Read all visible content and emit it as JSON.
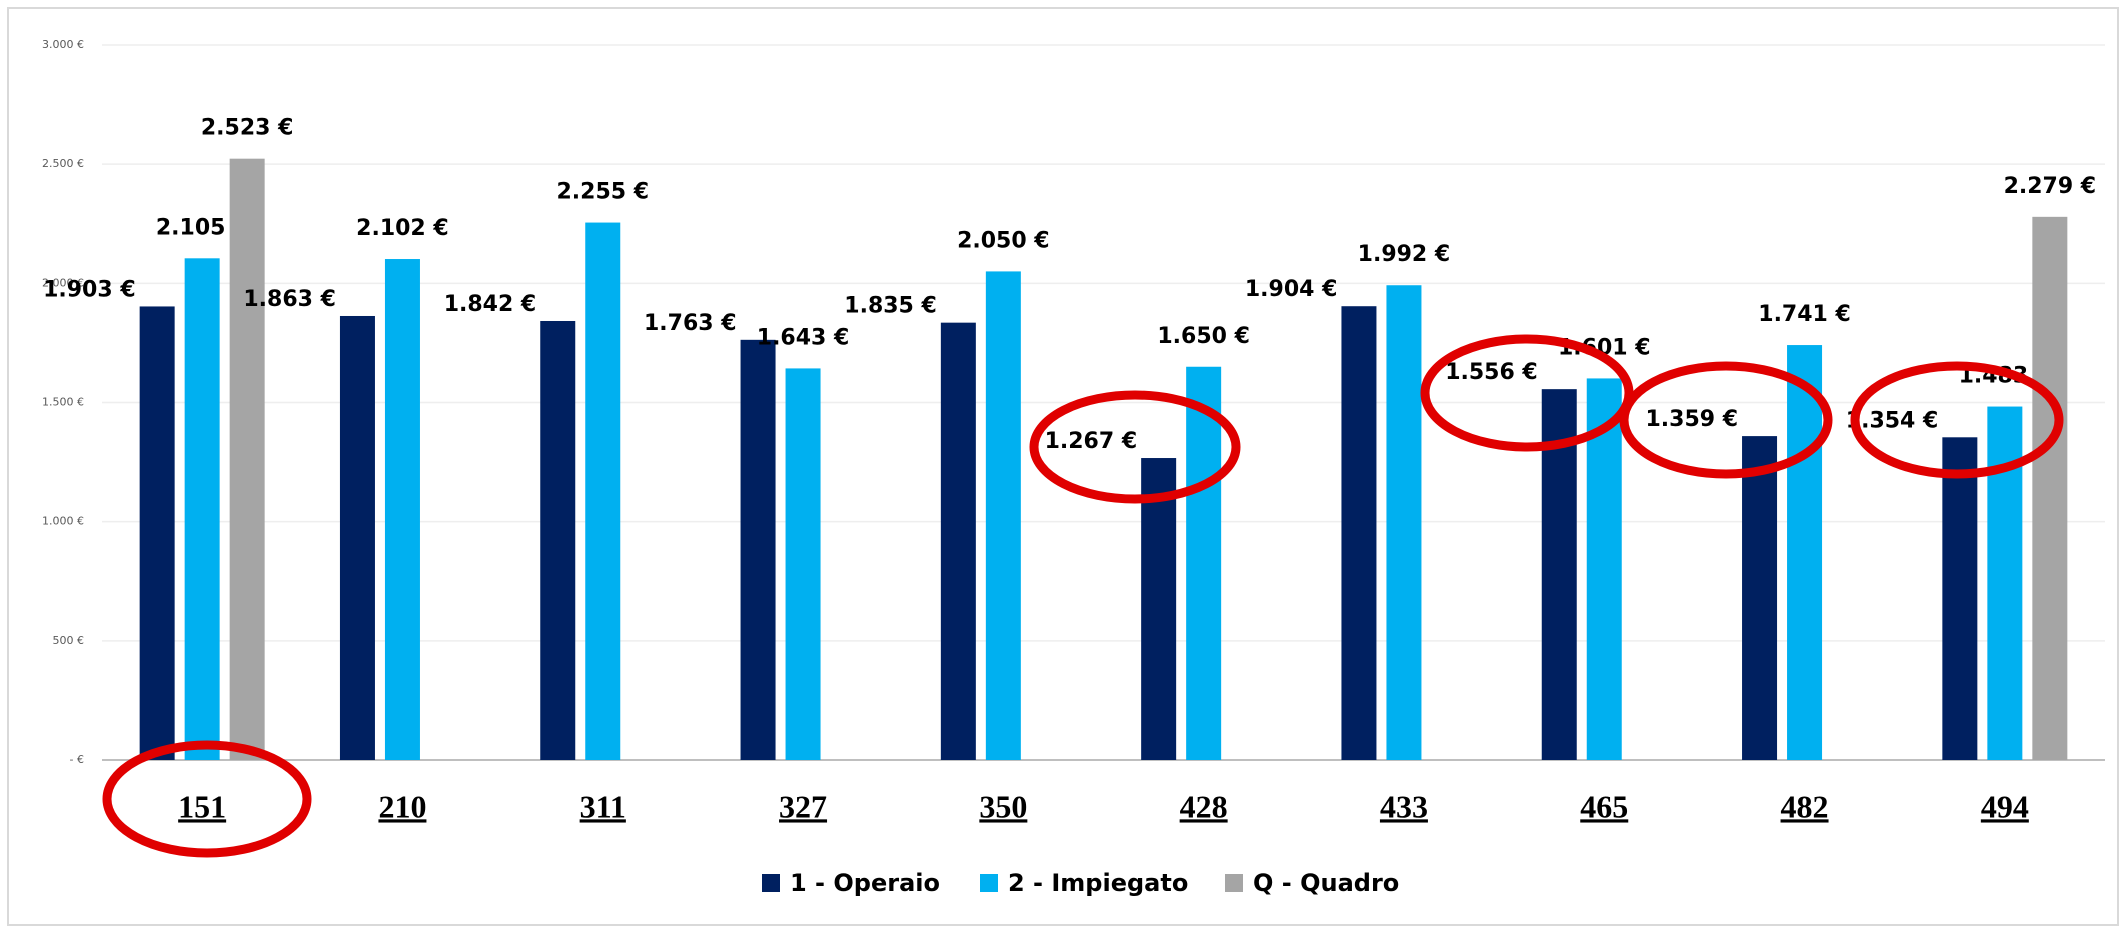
{
  "chart_data": {
    "type": "bar",
    "categories": [
      "151",
      "210",
      "311",
      "327",
      "350",
      "428",
      "433",
      "465",
      "482",
      "494"
    ],
    "series": [
      {
        "name": "1 - Operaio",
        "color": "#002060",
        "values": [
          1903,
          1863,
          1842,
          1763,
          1835,
          1267,
          1904,
          1556,
          1359,
          1354
        ],
        "value_labels": [
          "1.903 €",
          "1.863 €",
          "1.842 €",
          "1.763 €",
          "1.835 €",
          "1.267 €",
          "1.904 €",
          "1.556 €",
          "1.359 €",
          "1.354 €"
        ]
      },
      {
        "name": "2 - Impiegato",
        "color": "#00b0f0",
        "values": [
          2105,
          2102,
          2255,
          1643,
          2050,
          1650,
          1992,
          1601,
          1741,
          1483
        ],
        "value_labels": [
          "2.105 €",
          "2.102 €",
          "2.255 €",
          "1.643 €",
          "2.050 €",
          "1.650 €",
          "1.992 €",
          "1.601 €",
          "1.741 €",
          "1.483 €"
        ]
      },
      {
        "name": "Q - Quadro",
        "color": "#a5a5a5",
        "values": [
          2523,
          null,
          null,
          null,
          null,
          null,
          null,
          null,
          null,
          2279
        ],
        "value_labels": [
          "2.523 €",
          null,
          null,
          null,
          null,
          null,
          null,
          null,
          null,
          "2.279 €"
        ]
      }
    ],
    "ylim": [
      0,
      3000
    ],
    "yticks": [
      {
        "value": 0,
        "label": "- €"
      },
      {
        "value": 500,
        "label": "500 €"
      },
      {
        "value": 1000,
        "label": "1.000 €"
      },
      {
        "value": 1500,
        "label": "1.500 €"
      },
      {
        "value": 2000,
        "label": "2.000 €"
      },
      {
        "value": 2500,
        "label": "2.500 €"
      },
      {
        "value": 3000,
        "label": "3.000 €"
      }
    ],
    "grid": true,
    "legend": "bottom"
  }
}
